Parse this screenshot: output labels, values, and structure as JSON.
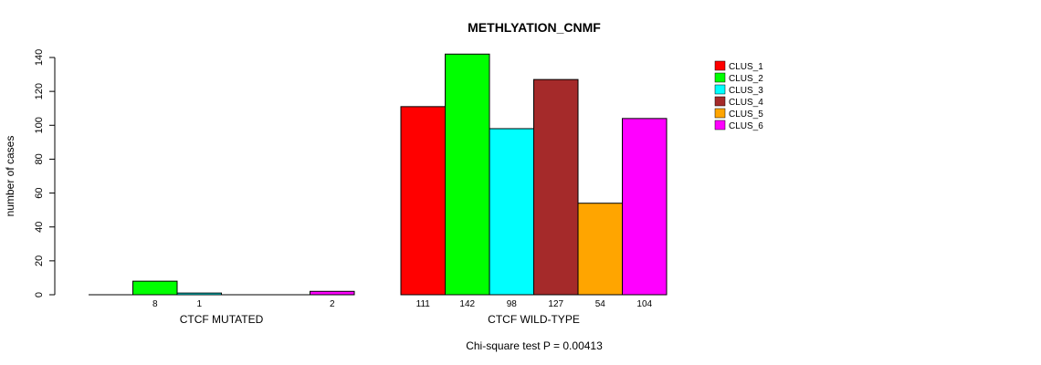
{
  "chart_data": {
    "type": "bar",
    "title": "METHLYATION_CNMF",
    "ylabel": "number of cases",
    "ylim": [
      0,
      140
    ],
    "yticks": [
      0,
      20,
      40,
      60,
      80,
      100,
      120,
      140
    ],
    "groups": [
      {
        "label": "CTCF MUTATED",
        "values": [
          0,
          8,
          1,
          0,
          0,
          2
        ]
      },
      {
        "label": "CTCF WILD-TYPE",
        "values": [
          111,
          142,
          98,
          127,
          54,
          104
        ]
      }
    ],
    "series": [
      {
        "name": "CLUS_1",
        "color": "#ff0000"
      },
      {
        "name": "CLUS_2",
        "color": "#00ff00"
      },
      {
        "name": "CLUS_3",
        "color": "#00ffff"
      },
      {
        "name": "CLUS_4",
        "color": "#a52a2a"
      },
      {
        "name": "CLUS_5",
        "color": "#ffa500"
      },
      {
        "name": "CLUS_6",
        "color": "#ff00ff"
      }
    ],
    "legend_position": "top-right",
    "footnote": "Chi-square test P = 0.00413"
  }
}
